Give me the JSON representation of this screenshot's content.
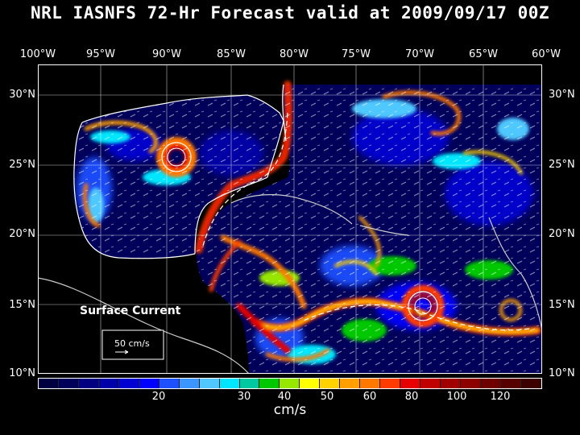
{
  "title": "NRL IASNFS  72-Hr Forecast valid at 2009/09/17 00Z",
  "longitude_labels": [
    "100°W",
    "95°W",
    "90°W",
    "85°W",
    "80°W",
    "75°W",
    "70°W",
    "65°W",
    "60°W"
  ],
  "latitude_labels": [
    "30°N",
    "25°N",
    "20°N",
    "15°N",
    "10°N"
  ],
  "map": {
    "overlay_label": "Surface Current",
    "reference_vector_label": "50 cm/s"
  },
  "colorbar": {
    "colors": [
      "#000040",
      "#00005a",
      "#000080",
      "#0000a8",
      "#0000d0",
      "#0000ff",
      "#1e50ff",
      "#3c96ff",
      "#50c8ff",
      "#00e6ff",
      "#00c8a0",
      "#00c800",
      "#96e600",
      "#ffff00",
      "#ffd200",
      "#ffa000",
      "#ff7800",
      "#ff3c00",
      "#e60000",
      "#c00000",
      "#a00000",
      "#8c0000",
      "#6e0000",
      "#560000",
      "#3c0000"
    ],
    "tick_labels": [
      "20",
      "30",
      "40",
      "50",
      "60",
      "80",
      "100",
      "120"
    ],
    "units": "cm/s"
  },
  "colors": {
    "background": "#000000",
    "ocean_base": "#00005a",
    "land": "#000000",
    "coastline": "#ffffff",
    "gridline": "#ffffff",
    "strong_current": "#e60000"
  }
}
